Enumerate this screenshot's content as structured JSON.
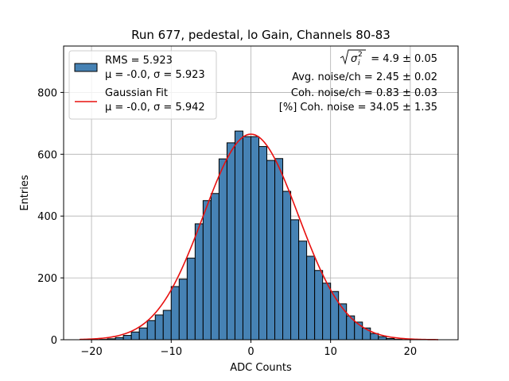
{
  "chart_data": {
    "type": "bar",
    "title": "Run 677, pedestal, lo Gain, Channels 80-83",
    "xlabel": "ADC Counts",
    "ylabel": "Entries",
    "xlim": [
      -23.5,
      26
    ],
    "ylim": [
      0,
      950
    ],
    "x_ticks": [
      -20,
      -10,
      0,
      10,
      20
    ],
    "y_ticks": [
      0,
      200,
      400,
      600,
      800
    ],
    "x_tick_labels": [
      "−20",
      "−10",
      "0",
      "10",
      "20"
    ],
    "y_tick_labels": [
      "0",
      "200",
      "400",
      "600",
      "800"
    ],
    "grid": true,
    "legend_position": "top-left",
    "bin_width": 1,
    "bins": [
      -21,
      -20,
      -19,
      -18,
      -17,
      -16,
      -15,
      -14,
      -13,
      -12,
      -11,
      -10,
      -9,
      -8,
      -7,
      -6,
      -5,
      -4,
      -3,
      -2,
      -1,
      0,
      1,
      2,
      3,
      4,
      5,
      6,
      7,
      8,
      9,
      10,
      11,
      12,
      13,
      14,
      15,
      16,
      17,
      18,
      19,
      20
    ],
    "values": [
      0,
      0,
      1,
      3,
      7,
      14,
      25,
      38,
      62,
      80,
      95,
      172,
      196,
      264,
      375,
      450,
      473,
      585,
      637,
      675,
      657,
      657,
      625,
      580,
      586,
      480,
      388,
      319,
      270,
      224,
      183,
      156,
      116,
      77,
      57,
      38,
      20,
      10,
      4,
      1,
      0,
      0
    ],
    "series": [
      {
        "name": "RMS = 5.923",
        "name_line2": "μ = -0.0, σ = 5.923",
        "kind": "histogram",
        "color": "#4682b4",
        "edgecolor": "#000000"
      },
      {
        "name": "Gaussian Fit",
        "name_line2": "μ = -0.0, σ = 5.942",
        "kind": "line",
        "color": "#e8100f",
        "mu": 0.0,
        "sigma": 5.942,
        "amplitude": 665,
        "x_range": [
          -21.5,
          23.5
        ]
      }
    ],
    "annotations": [
      {
        "sqrt_label": "σ",
        "sqrt_sub": "i",
        "sqrt_sup": "2",
        "suffix": " = 4.9 ± 0.05"
      },
      {
        "text": "Avg. noise/ch = 2.45 ± 0.02"
      },
      {
        "text": "Coh. noise/ch = 0.83 ± 0.03"
      },
      {
        "text": "[%] Coh. noise = 34.05 ± 1.35"
      }
    ]
  }
}
